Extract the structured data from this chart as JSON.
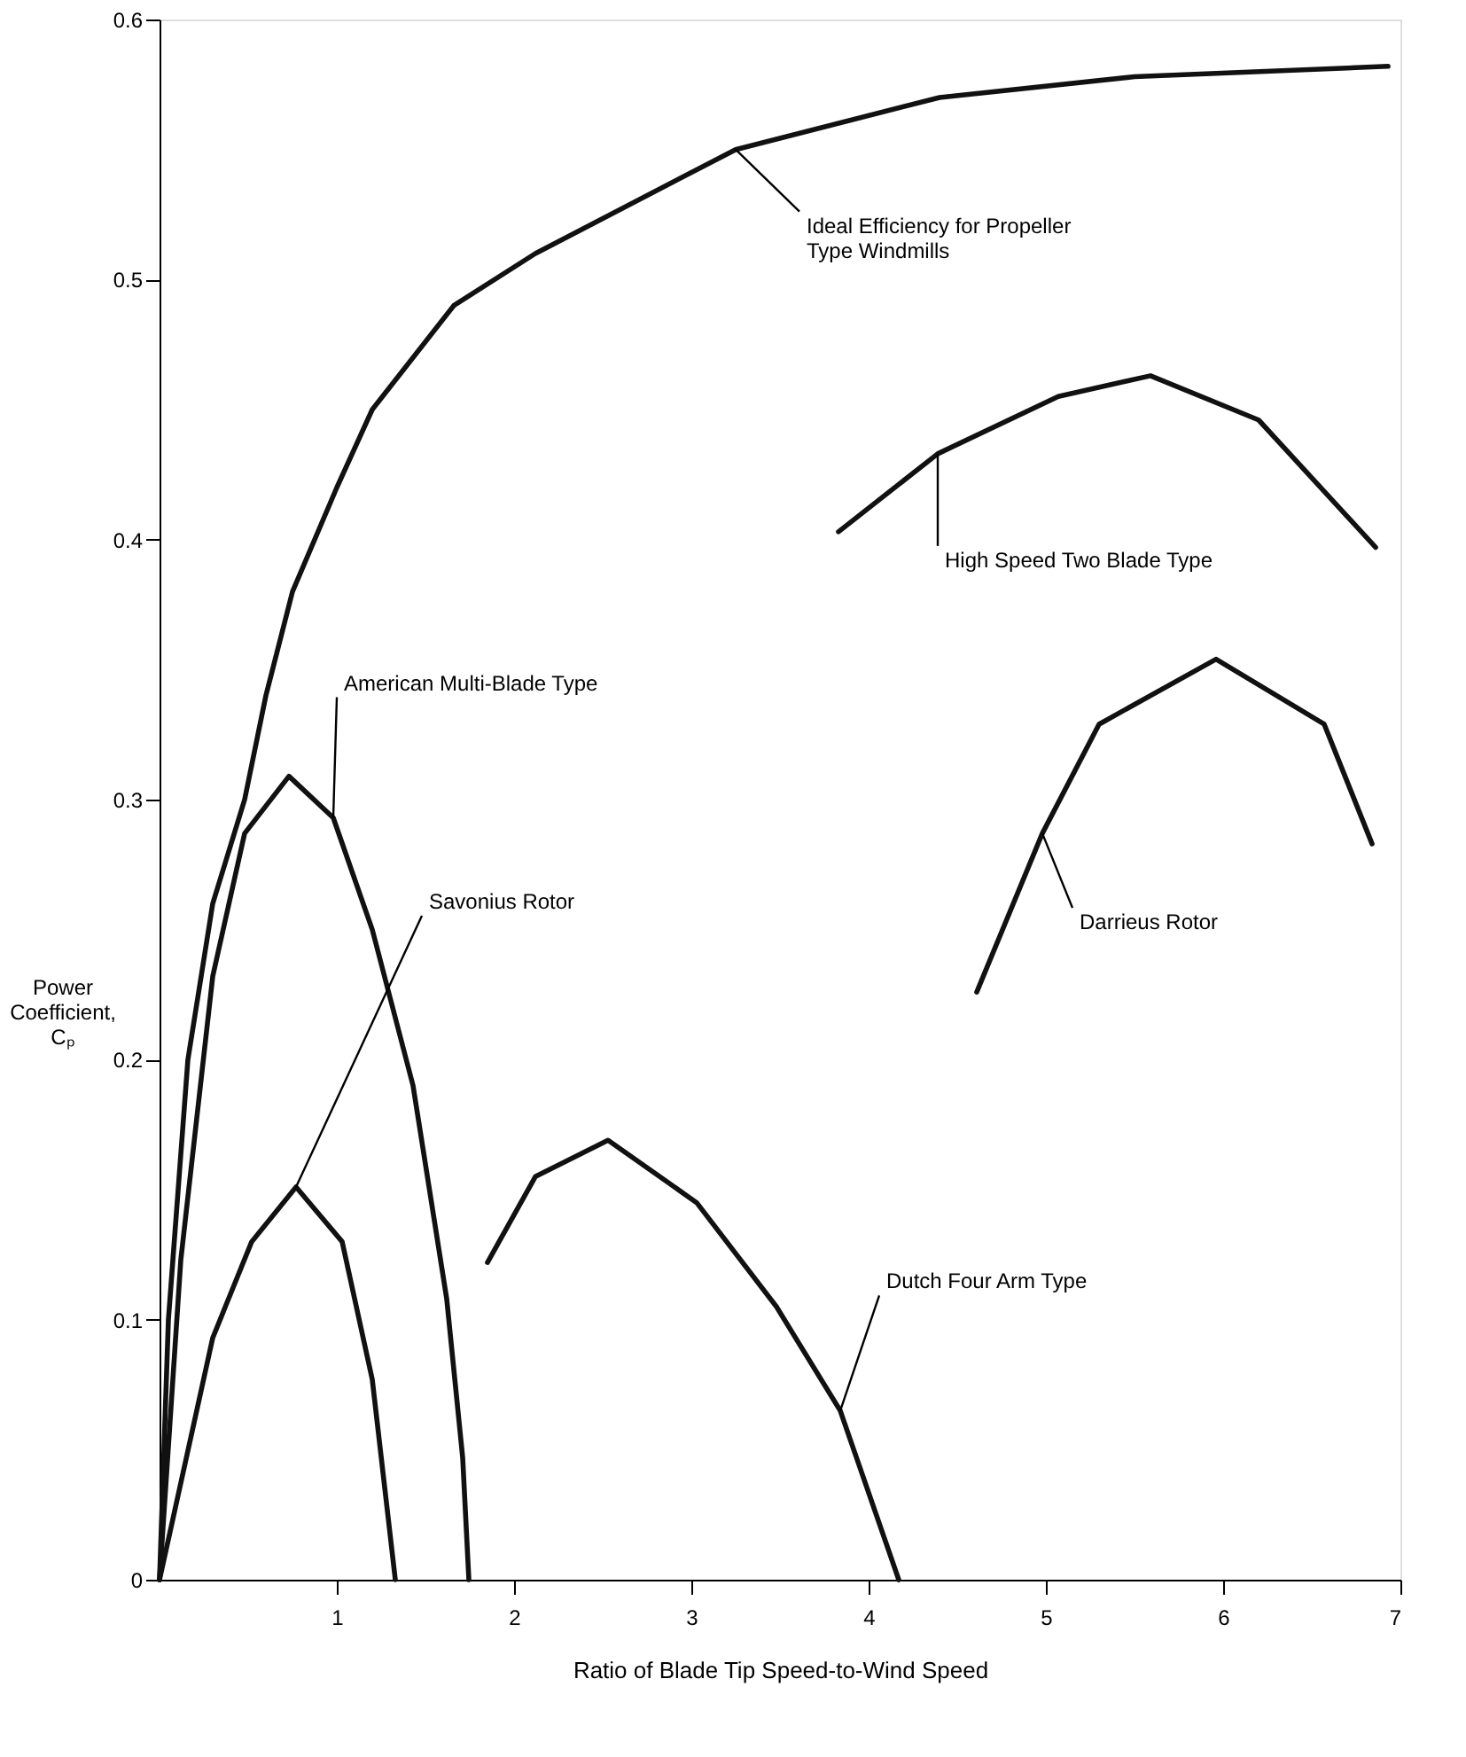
{
  "chart_data": {
    "type": "line",
    "xlabel": "Ratio of Blade Tip Speed-to-Wind Speed",
    "ylabel": "Power Coefficient, Cₚ",
    "xlim": [
      0,
      7
    ],
    "ylim": [
      0,
      0.6
    ],
    "xticks": [
      1,
      2,
      3,
      4,
      5,
      6,
      7
    ],
    "yticks": [
      0,
      0.1,
      0.2,
      0.3,
      0.4,
      0.5,
      0.6
    ],
    "grid": false,
    "legend": false,
    "marker": "none",
    "line_style": "solid",
    "series": [
      {
        "color": "#111111",
        "x": [
          0,
          0.05,
          0.16,
          0.3,
          0.48,
          0.6,
          0.75,
          1.0,
          1.2,
          1.66,
          2.12,
          3.25,
          4.4,
          5.5,
          6.93
        ],
        "values": [
          0,
          0.1,
          0.2,
          0.26,
          0.3,
          0.34,
          0.38,
          0.42,
          0.45,
          0.49,
          0.51,
          0.55,
          0.57,
          0.578,
          0.582
        ]
      },
      {
        "color": "#111111",
        "x": [
          3.83,
          4.39,
          5.07,
          5.59,
          6.2,
          6.86
        ],
        "values": [
          0.403,
          0.433,
          0.455,
          0.463,
          0.446,
          0.397
        ]
      },
      {
        "color": "#111111",
        "x": [
          4.61,
          4.98,
          5.3,
          5.96,
          6.57,
          6.84
        ],
        "values": [
          0.226,
          0.287,
          0.329,
          0.354,
          0.329,
          0.283
        ]
      },
      {
        "color": "#111111",
        "x": [
          0,
          0.12,
          0.3,
          0.48,
          0.73,
          0.98,
          1.2,
          1.43,
          1.62,
          1.71,
          1.745
        ],
        "values": [
          0,
          0.123,
          0.232,
          0.287,
          0.309,
          0.293,
          0.25,
          0.19,
          0.108,
          0.047,
          0
        ]
      },
      {
        "color": "#111111",
        "x": [
          0,
          0.3,
          0.52,
          0.77,
          1.03,
          1.2,
          1.33
        ],
        "values": [
          0,
          0.093,
          0.13,
          0.151,
          0.13,
          0.077,
          0
        ]
      },
      {
        "color": "#111111",
        "x": [
          1.85,
          2.12,
          2.53,
          3.03,
          3.48,
          3.84,
          4.17
        ],
        "values": [
          0.122,
          0.155,
          0.169,
          0.145,
          0.105,
          0.065,
          0
        ]
      }
    ],
    "annotations": [
      {
        "text": "Ideal Efficiency for Propeller\nType Windmills",
        "x": 3.25,
        "y": 0.55
      },
      {
        "text": "High Speed Two Blade Type",
        "x": 4.39,
        "y": 0.433
      },
      {
        "text": "Darrieus Rotor",
        "x": 4.98,
        "y": 0.287
      },
      {
        "text": "American Multi-Blade Type",
        "x": 0.98,
        "y": 0.293
      },
      {
        "text": "Savonius Rotor",
        "x": 0.77,
        "y": 0.151
      },
      {
        "text": "Dutch Four Arm Type",
        "x": 3.84,
        "y": 0.065
      }
    ]
  }
}
